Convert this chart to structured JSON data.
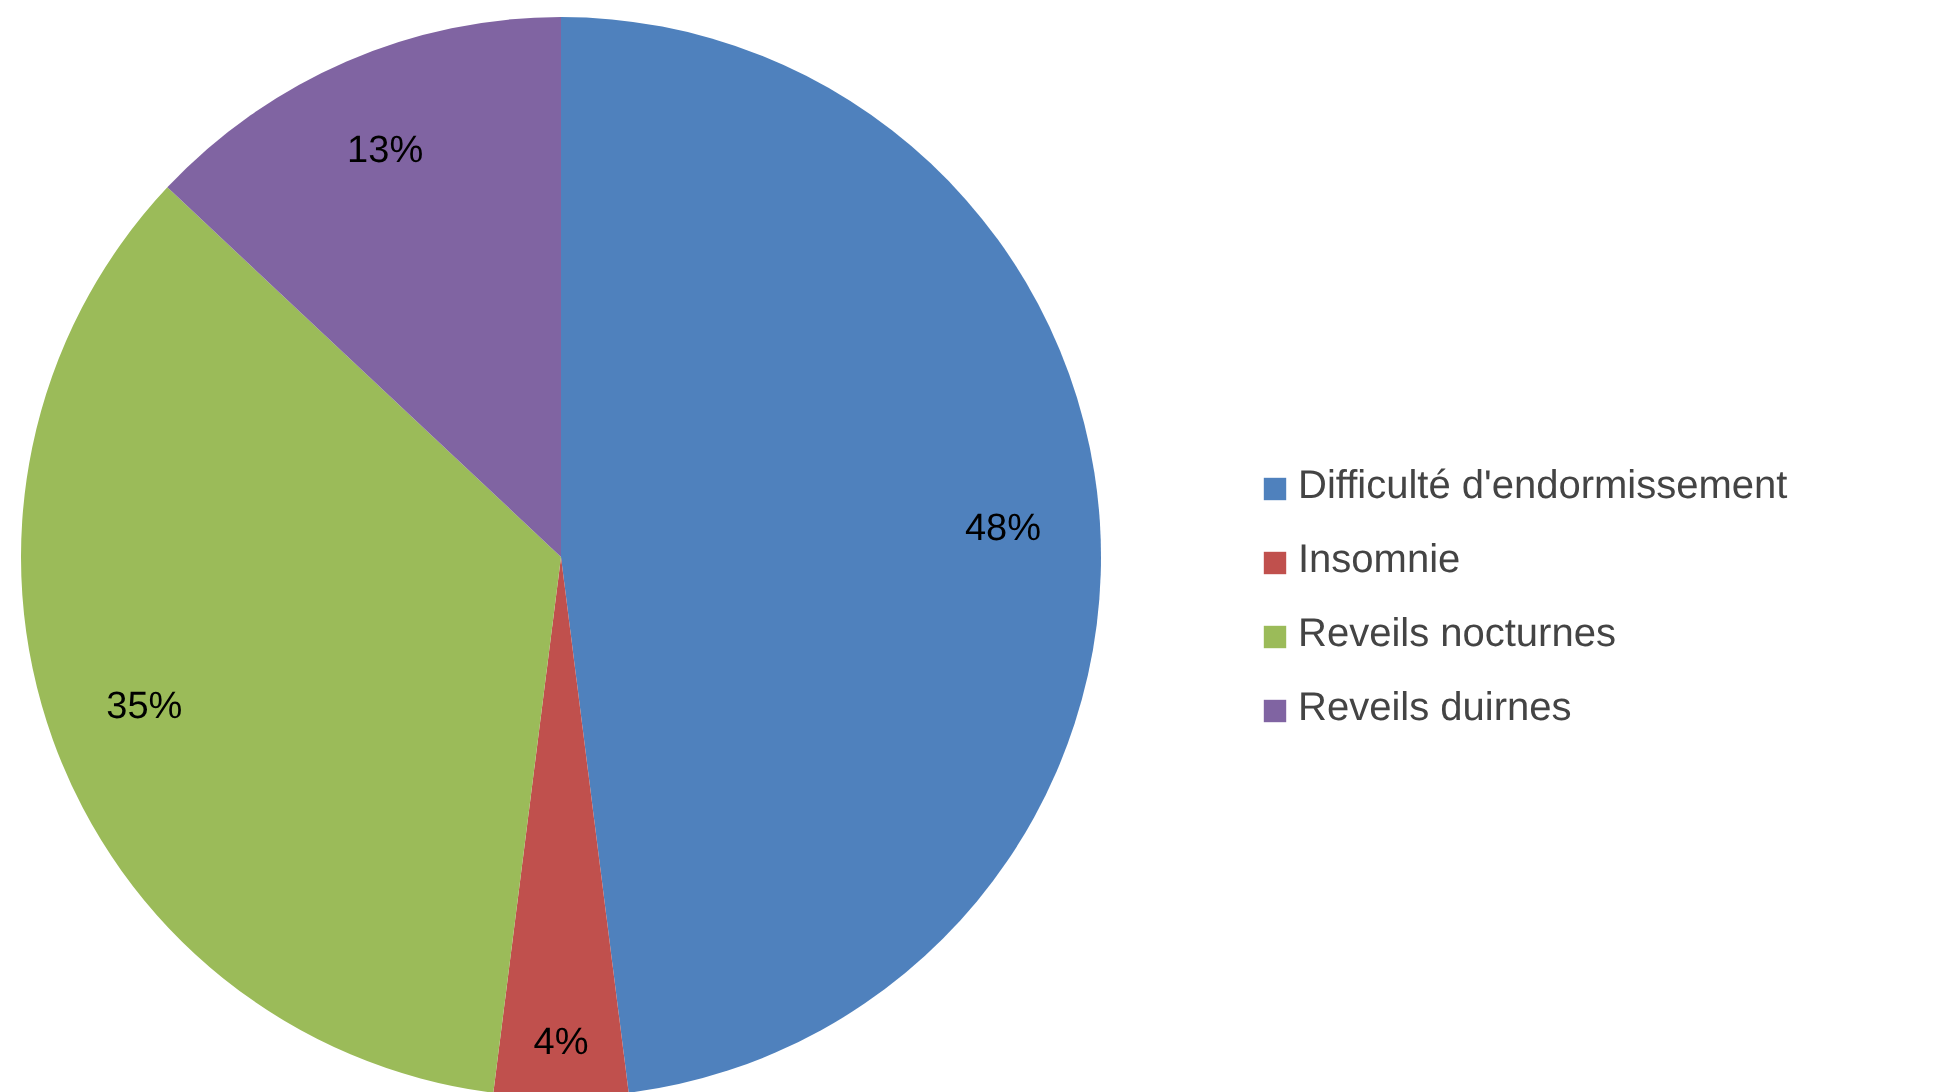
{
  "chart_data": {
    "type": "pie",
    "categories": [
      "Difficulté d'endormissement",
      "Insomnie",
      "Reveils nocturnes",
      "Reveils duirnes"
    ],
    "values": [
      48,
      4,
      35,
      13
    ],
    "colors": [
      "#4f81bd",
      "#c0504d",
      "#9bbb59",
      "#8064a2"
    ],
    "value_labels": [
      "48%",
      "4%",
      "35%",
      "13%"
    ],
    "legend": "right"
  }
}
